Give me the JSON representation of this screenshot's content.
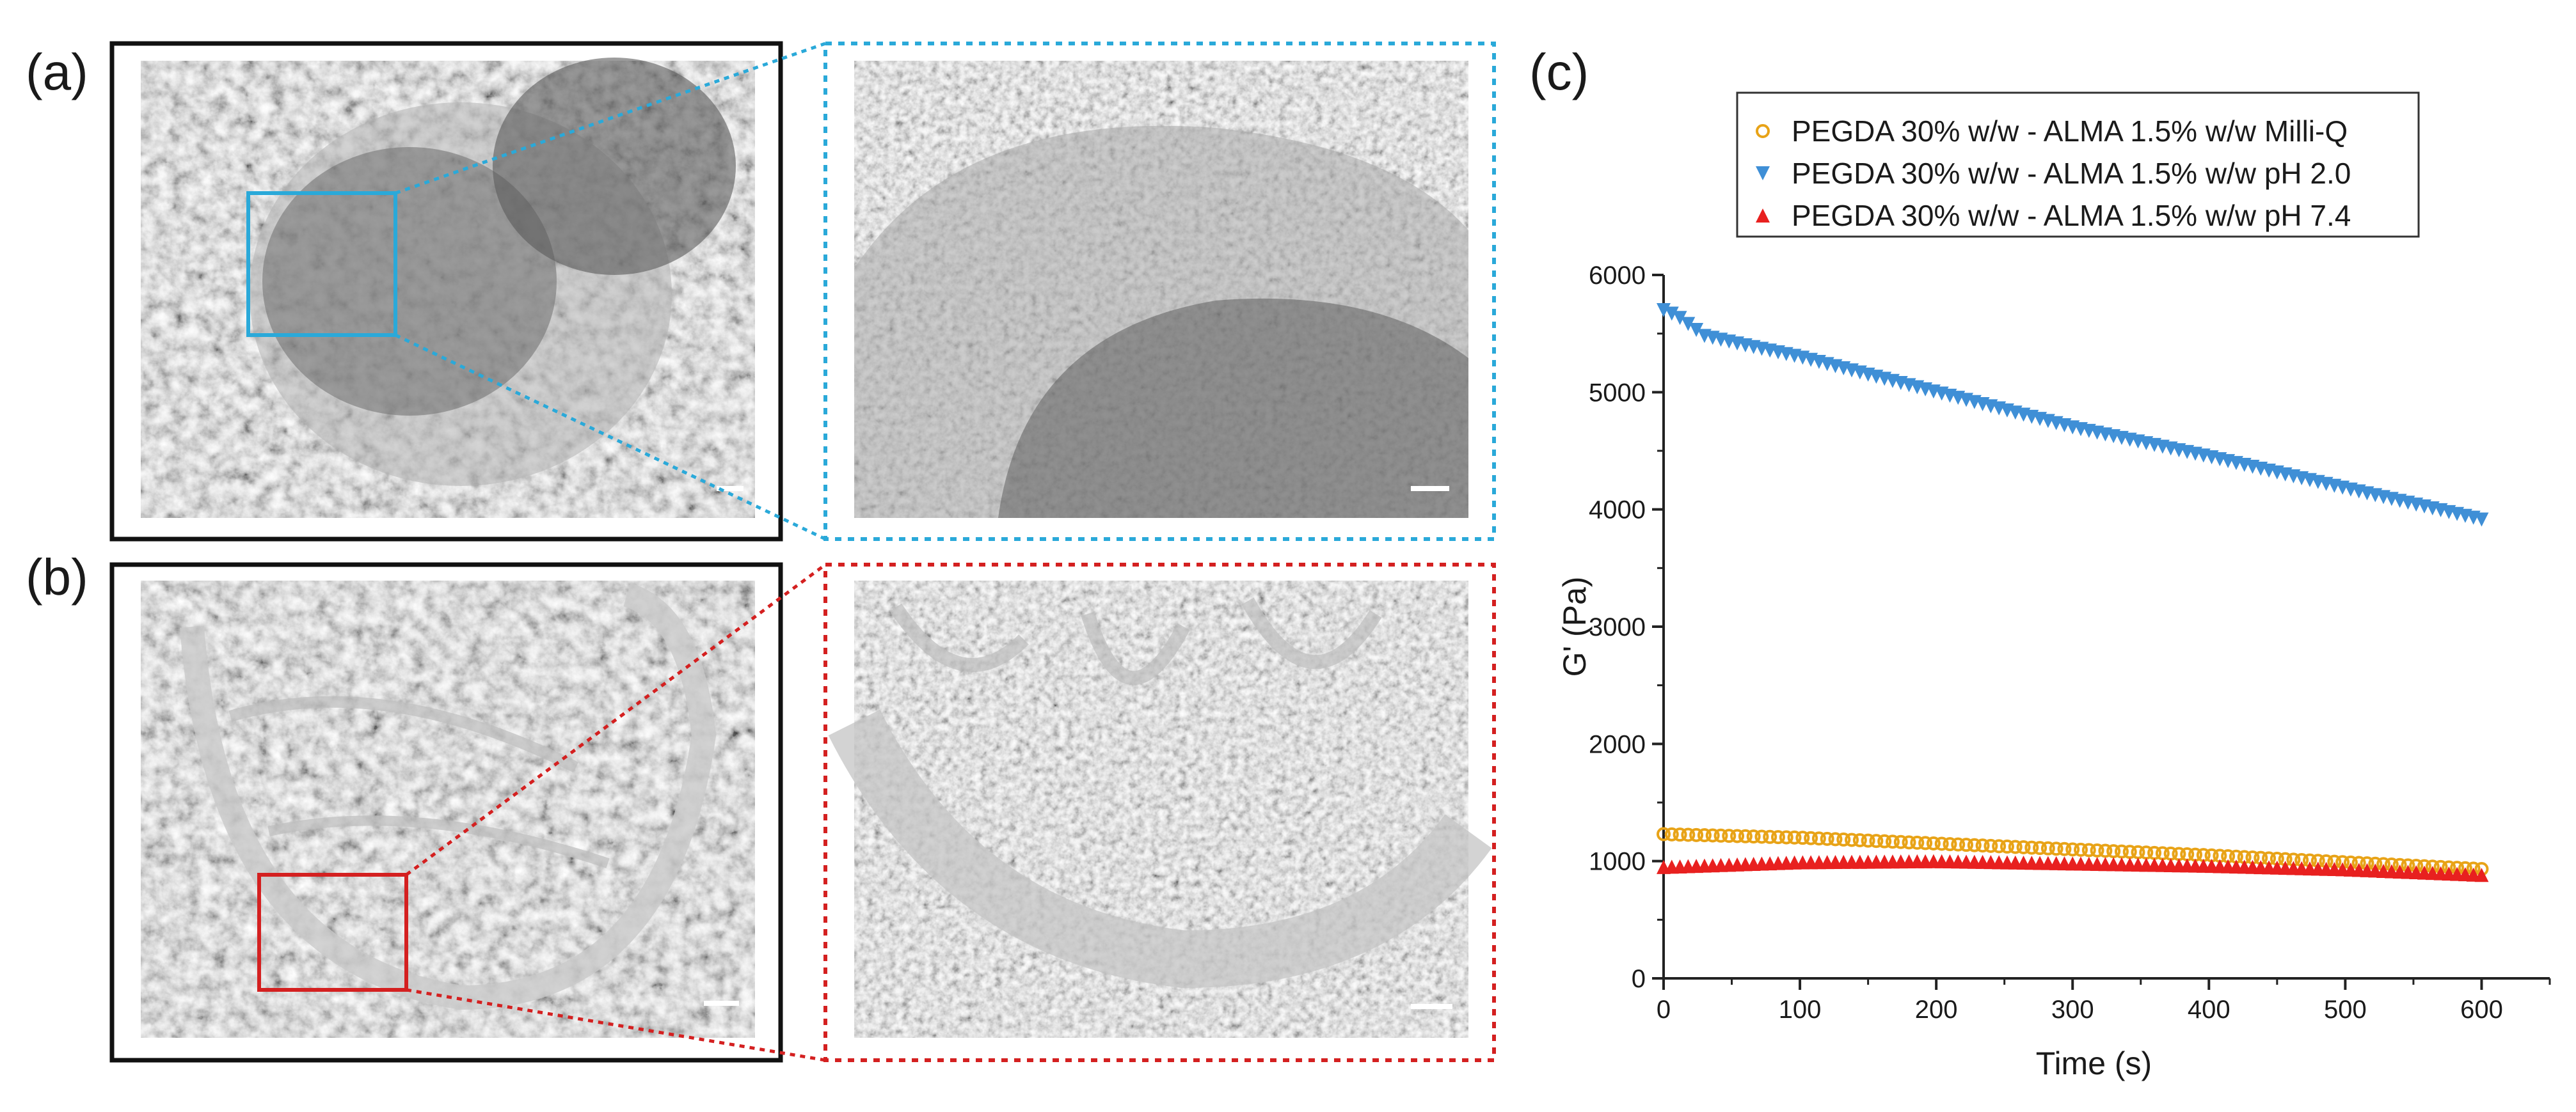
{
  "panels": {
    "a": "(a)",
    "b": "(b)",
    "c": "(c)"
  },
  "colors": {
    "milliq": "#e8a317",
    "ph2": "#3f8fd6",
    "ph74": "#e8201f",
    "frame_a_zoom": "#2aa9d9",
    "frame_b_zoom": "#d42020",
    "sem_bg": "#8e8e8e"
  },
  "chart_data": {
    "type": "scatter",
    "title": "",
    "xlabel": "Time (s)",
    "ylabel": "G' (Pa)",
    "xlim": [
      0,
      650
    ],
    "ylim": [
      0,
      6000
    ],
    "xticks": [
      0,
      100,
      200,
      300,
      400,
      500,
      600
    ],
    "yticks": [
      0,
      1000,
      2000,
      3000,
      4000,
      5000,
      6000
    ],
    "legend_position": "top",
    "series": [
      {
        "name": "PEGDA 30% w/w - ALMA 1.5% w/w  Milli-Q",
        "marker": "open-circle",
        "color": "#e8a317",
        "x": [
          0,
          100,
          200,
          300,
          400,
          500,
          605
        ],
        "y": [
          1230,
          1200,
          1150,
          1100,
          1050,
          990,
          930
        ]
      },
      {
        "name": "PEGDA 30% w/w - ALMA 1.5% w/w pH 2.0",
        "marker": "triangle-down",
        "color": "#3f8fd6",
        "x": [
          0,
          10,
          30,
          60,
          100,
          200,
          300,
          400,
          500,
          605
        ],
        "y": [
          5700,
          5650,
          5480,
          5400,
          5300,
          5000,
          4700,
          4450,
          4180,
          3900
        ]
      },
      {
        "name": "PEGDA 30% w/w - ALMA 1.5% w/w  pH 7.4",
        "marker": "triangle-up",
        "color": "#e8201f",
        "x": [
          0,
          100,
          200,
          300,
          400,
          500,
          605
        ],
        "y": [
          950,
          990,
          1000,
          980,
          960,
          930,
          880
        ]
      }
    ]
  }
}
